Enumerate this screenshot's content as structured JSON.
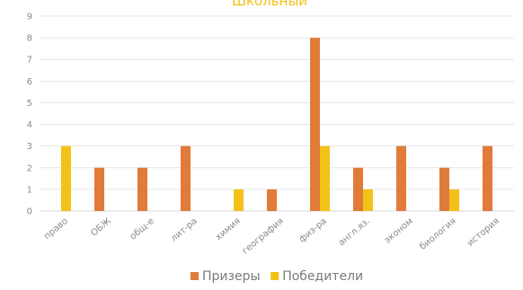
{
  "chart_data": {
    "type": "bar",
    "title": "Школьный",
    "categories": [
      "право",
      "ОБЖ",
      "общ-е",
      "лит-ра",
      "химия",
      "география",
      "физ-ра",
      "англ.яз.",
      "эконом",
      "биология",
      "история"
    ],
    "series": [
      {
        "name": "Призеры",
        "color": "#e07b39",
        "values": [
          0,
          2,
          2,
          3,
          0,
          1,
          8,
          2,
          3,
          2,
          3
        ]
      },
      {
        "name": "Победители",
        "color": "#f2c218",
        "values": [
          3,
          0,
          0,
          0,
          1,
          0,
          3,
          1,
          0,
          1,
          0
        ]
      }
    ],
    "ylim": [
      0,
      9
    ],
    "yticks": [
      "0",
      "1",
      "2",
      "3",
      "4",
      "5",
      "6",
      "7",
      "8",
      "9"
    ],
    "grid": true,
    "legend_position": "bottom"
  }
}
